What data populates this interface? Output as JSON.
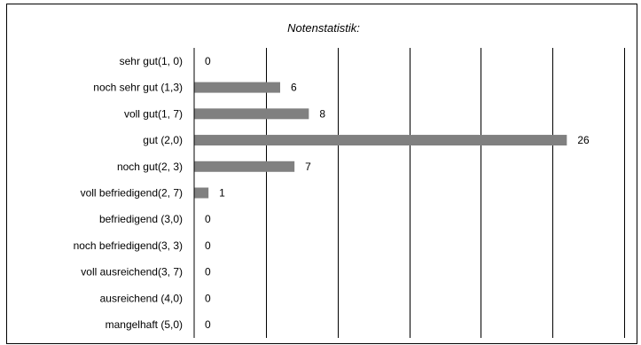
{
  "chart_data": {
    "type": "bar",
    "orientation": "horizontal",
    "title": "Notenstatistik:",
    "xlabel": "",
    "ylabel": "",
    "categories": [
      "sehr gut(1, 0)",
      "noch sehr gut (1,3)",
      "voll gut(1, 7)",
      "gut (2,0)",
      "noch gut(2, 3)",
      "voll befriedigend(2, 7)",
      "befriedigend (3,0)",
      "noch befriedigend(3, 3)",
      "voll ausreichend(3, 7)",
      "ausreichend (4,0)",
      "mangelhaft (5,0)"
    ],
    "values": [
      0,
      6,
      8,
      26,
      7,
      1,
      0,
      0,
      0,
      0,
      0
    ],
    "xlim": [
      0,
      30
    ],
    "grid": {
      "vertical": true,
      "horizontal": false
    },
    "legend": "none",
    "bar_color": "#808080",
    "data_labels": true
  }
}
